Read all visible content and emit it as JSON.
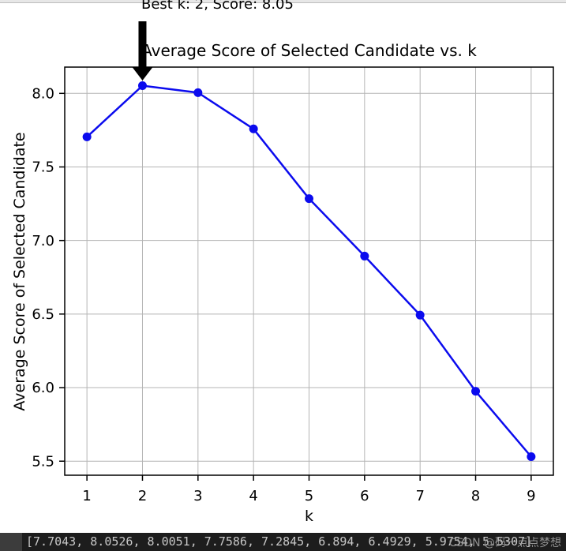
{
  "accent_colors": {
    "line_blue": "#0b0bee",
    "grid_gray": "#b4b4b4",
    "frame_black": "#000000",
    "bar_bg": "#1d1d1d",
    "bar_gutter_bg": "#3c3c3c",
    "bar_text": "#c8c8c8",
    "watermark_gray": "#a0a0a0"
  },
  "chart_data": {
    "type": "line",
    "title": "Average Score of Selected Candidate vs. k",
    "xlabel": "k",
    "ylabel": "Average Score of Selected Candidate",
    "x": [
      1,
      2,
      3,
      4,
      5,
      6,
      7,
      8,
      9
    ],
    "series": [
      {
        "name": "Average Score of Selected Candidate",
        "values": [
          7.7043,
          8.0526,
          8.0051,
          7.7586,
          7.2845,
          6.894,
          6.4929,
          5.9754,
          5.5307
        ]
      }
    ],
    "xticks": [
      1,
      2,
      3,
      4,
      5,
      6,
      7,
      8,
      9
    ],
    "yticks": [
      8.0,
      7.5,
      7.0,
      6.5,
      6.0,
      5.5
    ],
    "xlim": [
      0.6,
      9.4
    ],
    "ylim": [
      5.4046,
      8.1787
    ],
    "grid": true,
    "legend": "none",
    "marker": "o",
    "line_color": "#0b0bee",
    "annotation": {
      "text": "Best k: 2, Score: 8.05",
      "xy": [
        2,
        8.0526
      ]
    }
  },
  "output_bar": {
    "text": "[7.7043, 8.0526, 8.0051, 7.7586, 7.2845, 6.894, 6.4929, 5.9754, 5.5307]",
    "watermark": "CSDN @码一点点梦想"
  }
}
